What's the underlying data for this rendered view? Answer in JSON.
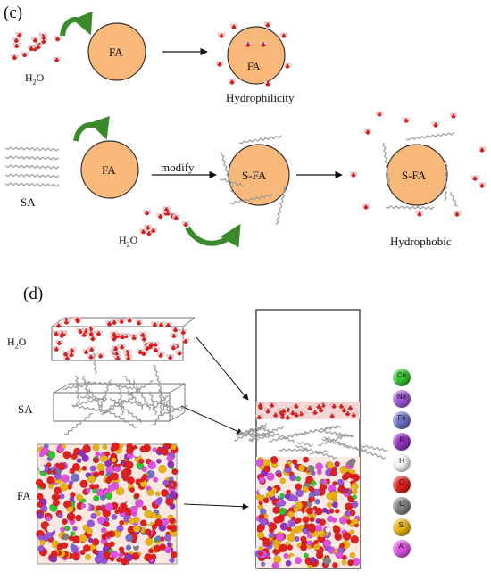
{
  "panel_c": {
    "label": "(c)",
    "water_label": "H2O",
    "fa_label": "FA",
    "hydrophilicity_label": "Hydrophilicity",
    "sa_label": "SA",
    "modify_label": "modify",
    "sfa_label": "S-FA",
    "hydrophobic_label": "Hydrophobic"
  },
  "panel_d": {
    "label": "(d)",
    "water_label": "H2O",
    "sa_label": "SA",
    "fa_label": "FA"
  },
  "legend": [
    {
      "symbol": "Ca",
      "color": "#33c233"
    },
    {
      "symbol": "Na",
      "color": "#9a55d6"
    },
    {
      "symbol": "Fe",
      "color": "#7070c8"
    },
    {
      "symbol": "K",
      "color": "#9030c0"
    },
    {
      "symbol": "H",
      "color": "#f2f2f2"
    },
    {
      "symbol": "O",
      "color": "#e02020"
    },
    {
      "symbol": "C",
      "color": "#808080"
    },
    {
      "symbol": "Si",
      "color": "#e8b010"
    },
    {
      "symbol": "Al",
      "color": "#e050e0"
    }
  ],
  "colors": {
    "fa_fill": "#f7b87a",
    "arrow_green": "#3a8a2c",
    "oxygen": "#d42020",
    "hydrogen": "#f0d8d8",
    "carbon_chain": "#9a9a9a"
  }
}
